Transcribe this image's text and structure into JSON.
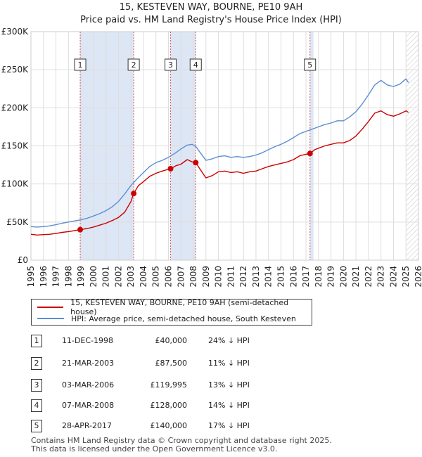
{
  "title_line1": "15, KESTEVEN WAY, BOURNE, PE10 9AH",
  "title_line2": "Price paid vs. HM Land Registry's House Price Index (HPI)",
  "colors": {
    "property": "#cc0000",
    "hpi": "#5b8fd1",
    "shade": "#dde6f5",
    "marker_line": "#dd5555",
    "grid": "#dddddd"
  },
  "chart_data": {
    "type": "line",
    "title": "15, KESTEVEN WAY, BOURNE, PE10 9AH — Price paid vs. HM Land Registry's House Price Index (HPI)",
    "xlabel": "",
    "ylabel": "",
    "xlim": [
      1995,
      2026
    ],
    "ylim": [
      0,
      300000
    ],
    "grid": true,
    "x_ticks": [
      "1995",
      "1996",
      "1997",
      "1998",
      "1999",
      "2000",
      "2001",
      "2002",
      "2003",
      "2004",
      "2005",
      "2006",
      "2007",
      "2008",
      "2009",
      "2010",
      "2011",
      "2012",
      "2013",
      "2014",
      "2015",
      "2016",
      "2017",
      "2018",
      "2019",
      "2020",
      "2021",
      "2022",
      "2023",
      "2024",
      "2025",
      "2026"
    ],
    "y_ticks": [
      {
        "value": 0,
        "label": "£0"
      },
      {
        "value": 50000,
        "label": "£50K"
      },
      {
        "value": 100000,
        "label": "£100K"
      },
      {
        "value": 150000,
        "label": "£150K"
      },
      {
        "value": 200000,
        "label": "£200K"
      },
      {
        "value": 250000,
        "label": "£250K"
      },
      {
        "value": 300000,
        "label": "£300K"
      }
    ],
    "shaded_ranges": [
      [
        1998.94,
        2003.22
      ],
      [
        2006.17,
        2008.18
      ],
      [
        2017.32,
        2017.6
      ],
      [
        2025.0,
        2026.0
      ]
    ],
    "series": [
      {
        "name": "15, KESTEVEN WAY, BOURNE, PE10 9AH (semi-detached house)",
        "color": "#cc0000",
        "points": [
          [
            1995.0,
            34000
          ],
          [
            1995.5,
            33000
          ],
          [
            1996.0,
            33500
          ],
          [
            1996.5,
            34000
          ],
          [
            1997.0,
            35000
          ],
          [
            1997.5,
            36500
          ],
          [
            1998.0,
            37500
          ],
          [
            1998.5,
            38800
          ],
          [
            1998.94,
            40000
          ],
          [
            1999.5,
            41500
          ],
          [
            2000.0,
            43500
          ],
          [
            2000.5,
            46000
          ],
          [
            2001.0,
            48500
          ],
          [
            2001.5,
            52000
          ],
          [
            2002.0,
            56000
          ],
          [
            2002.5,
            63000
          ],
          [
            2003.0,
            77000
          ],
          [
            2003.22,
            87500
          ],
          [
            2003.6,
            98000
          ],
          [
            2004.0,
            103000
          ],
          [
            2004.5,
            110000
          ],
          [
            2005.0,
            114000
          ],
          [
            2005.5,
            117000
          ],
          [
            2006.17,
            119995
          ],
          [
            2006.6,
            124000
          ],
          [
            2007.0,
            126000
          ],
          [
            2007.5,
            132000
          ],
          [
            2007.9,
            129000
          ],
          [
            2008.18,
            128000
          ],
          [
            2008.5,
            120000
          ],
          [
            2009.0,
            108000
          ],
          [
            2009.5,
            111000
          ],
          [
            2010.0,
            116000
          ],
          [
            2010.5,
            117000
          ],
          [
            2011.0,
            115000
          ],
          [
            2011.5,
            116000
          ],
          [
            2012.0,
            114000
          ],
          [
            2012.5,
            116000
          ],
          [
            2013.0,
            117000
          ],
          [
            2013.5,
            120000
          ],
          [
            2014.0,
            123000
          ],
          [
            2014.5,
            125000
          ],
          [
            2015.0,
            127000
          ],
          [
            2015.5,
            129000
          ],
          [
            2016.0,
            132000
          ],
          [
            2016.5,
            137000
          ],
          [
            2017.0,
            139000
          ],
          [
            2017.32,
            140000
          ],
          [
            2017.7,
            145000
          ],
          [
            2018.0,
            147000
          ],
          [
            2018.5,
            150000
          ],
          [
            2019.0,
            152000
          ],
          [
            2019.5,
            154000
          ],
          [
            2020.0,
            154000
          ],
          [
            2020.5,
            157000
          ],
          [
            2021.0,
            163000
          ],
          [
            2021.5,
            172000
          ],
          [
            2022.0,
            182000
          ],
          [
            2022.5,
            193000
          ],
          [
            2023.0,
            196000
          ],
          [
            2023.5,
            191000
          ],
          [
            2024.0,
            189000
          ],
          [
            2024.5,
            192000
          ],
          [
            2025.0,
            196000
          ],
          [
            2025.2,
            194000
          ]
        ]
      },
      {
        "name": "HPI: Average price, semi-detached house, South Kesteven",
        "color": "#5b8fd1",
        "points": [
          [
            1995.0,
            44000
          ],
          [
            1995.5,
            43500
          ],
          [
            1996.0,
            44000
          ],
          [
            1996.5,
            45000
          ],
          [
            1997.0,
            46500
          ],
          [
            1997.5,
            48500
          ],
          [
            1998.0,
            50000
          ],
          [
            1998.5,
            51500
          ],
          [
            1999.0,
            53000
          ],
          [
            1999.5,
            55000
          ],
          [
            2000.0,
            58000
          ],
          [
            2000.5,
            61000
          ],
          [
            2001.0,
            65000
          ],
          [
            2001.5,
            70000
          ],
          [
            2002.0,
            77000
          ],
          [
            2002.5,
            87000
          ],
          [
            2003.0,
            98000
          ],
          [
            2003.5,
            107000
          ],
          [
            2004.0,
            115000
          ],
          [
            2004.5,
            123000
          ],
          [
            2005.0,
            128000
          ],
          [
            2005.5,
            131000
          ],
          [
            2006.0,
            135000
          ],
          [
            2006.5,
            140000
          ],
          [
            2007.0,
            146000
          ],
          [
            2007.5,
            151000
          ],
          [
            2007.9,
            152000
          ],
          [
            2008.2,
            149000
          ],
          [
            2008.5,
            142000
          ],
          [
            2009.0,
            131000
          ],
          [
            2009.5,
            133000
          ],
          [
            2010.0,
            136000
          ],
          [
            2010.5,
            137000
          ],
          [
            2011.0,
            135000
          ],
          [
            2011.5,
            136000
          ],
          [
            2012.0,
            135000
          ],
          [
            2012.5,
            136000
          ],
          [
            2013.0,
            138000
          ],
          [
            2013.5,
            141000
          ],
          [
            2014.0,
            145000
          ],
          [
            2014.5,
            149000
          ],
          [
            2015.0,
            152000
          ],
          [
            2015.5,
            156000
          ],
          [
            2016.0,
            161000
          ],
          [
            2016.5,
            166000
          ],
          [
            2017.0,
            169000
          ],
          [
            2017.5,
            172000
          ],
          [
            2018.0,
            175000
          ],
          [
            2018.5,
            178000
          ],
          [
            2019.0,
            180000
          ],
          [
            2019.5,
            183000
          ],
          [
            2020.0,
            183000
          ],
          [
            2020.5,
            188000
          ],
          [
            2021.0,
            195000
          ],
          [
            2021.5,
            205000
          ],
          [
            2022.0,
            217000
          ],
          [
            2022.5,
            230000
          ],
          [
            2023.0,
            236000
          ],
          [
            2023.5,
            230000
          ],
          [
            2024.0,
            228000
          ],
          [
            2024.5,
            231000
          ],
          [
            2025.0,
            238000
          ],
          [
            2025.2,
            233000
          ]
        ]
      }
    ],
    "markers": [
      {
        "label": "1",
        "x": 1998.94,
        "y": 40000
      },
      {
        "label": "2",
        "x": 2003.22,
        "y": 87500
      },
      {
        "label": "3",
        "x": 2006.17,
        "y": 119995
      },
      {
        "label": "4",
        "x": 2008.18,
        "y": 128000
      },
      {
        "label": "5",
        "x": 2017.32,
        "y": 140000
      }
    ]
  },
  "legend": {
    "property_label": "15, KESTEVEN WAY, BOURNE, PE10 9AH (semi-detached house)",
    "hpi_label": "HPI: Average price, semi-detached house, South Kesteven"
  },
  "transactions": [
    {
      "num": "1",
      "date": "11-DEC-1998",
      "price": "£40,000",
      "hpi": "24% ↓ HPI"
    },
    {
      "num": "2",
      "date": "21-MAR-2003",
      "price": "£87,500",
      "hpi": "11% ↓ HPI"
    },
    {
      "num": "3",
      "date": "03-MAR-2006",
      "price": "£119,995",
      "hpi": "13% ↓ HPI"
    },
    {
      "num": "4",
      "date": "07-MAR-2008",
      "price": "£128,000",
      "hpi": "14% ↓ HPI"
    },
    {
      "num": "5",
      "date": "28-APR-2017",
      "price": "£140,000",
      "hpi": "17% ↓ HPI"
    }
  ],
  "footer": {
    "line1": "Contains HM Land Registry data © Crown copyright and database right 2025.",
    "line2": "This data is licensed under the Open Government Licence v3.0."
  }
}
